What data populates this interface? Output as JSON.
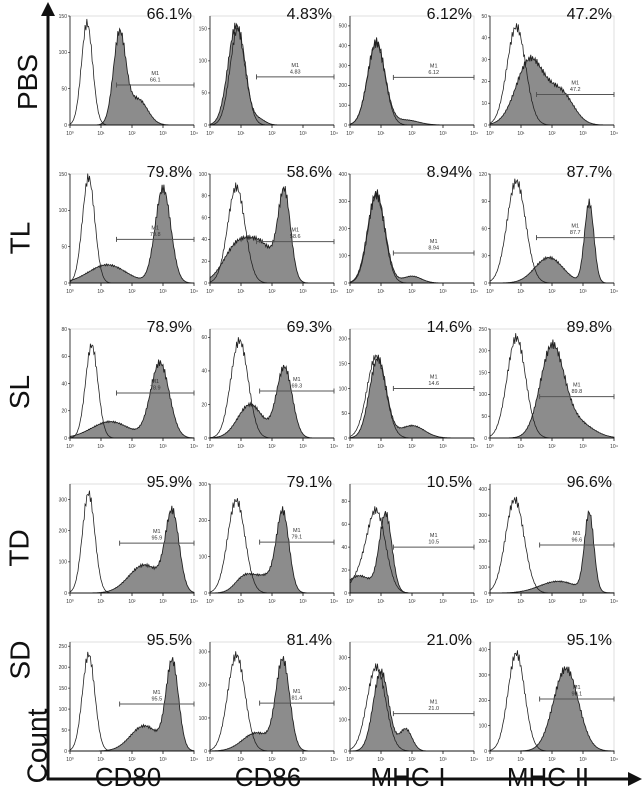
{
  "figure": {
    "y_axis_title": "Count",
    "colors": {
      "filled": "#8c8c8c",
      "outline": "#222222",
      "axis": "#111111",
      "gate": "#555555"
    }
  },
  "chart_data": {
    "type": "histogram-grid",
    "rows": [
      "PBS",
      "TL",
      "SL",
      "TD",
      "SD"
    ],
    "columns": [
      "CD80",
      "CD86",
      "MHC-I",
      "MHC-II"
    ],
    "y_axis_label": "Count",
    "x_scale": "log10",
    "x_range": [
      0,
      4
    ],
    "x_tick_labels": [
      "10⁰",
      "10¹",
      "10²",
      "10³",
      "10⁴"
    ],
    "gate_label": "M1",
    "panels": [
      {
        "row": "PBS",
        "col": "CD80",
        "pct": "66.1%",
        "gate_value": "66.1",
        "ymax": 150,
        "yticks": [
          0,
          50,
          100,
          150
        ],
        "gate_y": 55,
        "gate_from": 1.5,
        "control": [
          [
            0.55,
            0.18,
            140
          ]
        ],
        "sample": [
          [
            1.6,
            0.2,
            125
          ],
          [
            2.2,
            0.3,
            35
          ]
        ]
      },
      {
        "row": "PBS",
        "col": "CD86",
        "pct": "4.83%",
        "gate_value": "4.83",
        "ymax": 170,
        "yticks": [
          0,
          50,
          100,
          150
        ],
        "gate_y": 75,
        "gate_from": 1.5,
        "control": [
          [
            0.9,
            0.25,
            150
          ]
        ],
        "sample": [
          [
            0.85,
            0.27,
            155
          ],
          [
            1.6,
            0.2,
            8
          ]
        ]
      },
      {
        "row": "PBS",
        "col": "MHC-I",
        "pct": "6.12%",
        "gate_value": "6.12",
        "ymax": 550,
        "yticks": [
          0,
          100,
          200,
          300,
          400,
          500
        ],
        "gate_y": 240,
        "gate_from": 1.4,
        "control": [
          [
            0.85,
            0.28,
            410
          ]
        ],
        "sample": [
          [
            0.85,
            0.28,
            420
          ],
          [
            1.8,
            0.4,
            25
          ]
        ]
      },
      {
        "row": "PBS",
        "col": "MHC-II",
        "pct": "47.2%",
        "gate_value": "47.2",
        "ymax": 50,
        "yticks": [
          0,
          10,
          20,
          30,
          40,
          50
        ],
        "gate_y": 14,
        "gate_from": 1.5,
        "control": [
          [
            0.85,
            0.3,
            45
          ]
        ],
        "sample": [
          [
            1.3,
            0.45,
            30
          ],
          [
            2.3,
            0.4,
            14
          ]
        ]
      },
      {
        "row": "TL",
        "col": "CD80",
        "pct": "79.8%",
        "gate_value": "79.8",
        "ymax": 150,
        "yticks": [
          0,
          50,
          100,
          150
        ],
        "gate_y": 60,
        "gate_from": 1.5,
        "control": [
          [
            0.6,
            0.2,
            145
          ]
        ],
        "sample": [
          [
            1.2,
            0.6,
            25
          ],
          [
            3.0,
            0.25,
            130
          ]
        ]
      },
      {
        "row": "TL",
        "col": "CD86",
        "pct": "58.6%",
        "gate_value": "58.6",
        "ymax": 100,
        "yticks": [
          0,
          20,
          40,
          60,
          80,
          100
        ],
        "gate_y": 38,
        "gate_from": 1.5,
        "control": [
          [
            0.85,
            0.28,
            88
          ]
        ],
        "sample": [
          [
            0.9,
            0.45,
            35
          ],
          [
            1.7,
            0.4,
            30
          ],
          [
            2.4,
            0.2,
            80
          ]
        ]
      },
      {
        "row": "TL",
        "col": "MHC-I",
        "pct": "8.94%",
        "gate_value": "8.94",
        "ymax": 400,
        "yticks": [
          0,
          100,
          200,
          300,
          400
        ],
        "gate_y": 110,
        "gate_from": 1.4,
        "control": [
          [
            0.85,
            0.27,
            320
          ]
        ],
        "sample": [
          [
            0.85,
            0.28,
            330
          ],
          [
            2.0,
            0.3,
            25
          ]
        ]
      },
      {
        "row": "TL",
        "col": "MHC-II",
        "pct": "87.7%",
        "gate_value": "87.7",
        "ymax": 120,
        "yticks": [
          0,
          30,
          60,
          90,
          120
        ],
        "gate_y": 50,
        "gate_from": 1.5,
        "control": [
          [
            0.85,
            0.3,
            112
          ]
        ],
        "sample": [
          [
            1.9,
            0.45,
            28
          ],
          [
            3.2,
            0.15,
            88
          ]
        ]
      },
      {
        "row": "SL",
        "col": "CD80",
        "pct": "78.9%",
        "gate_value": "78.9",
        "ymax": 80,
        "yticks": [
          0,
          20,
          40,
          60,
          80
        ],
        "gate_y": 33,
        "gate_from": 1.5,
        "control": [
          [
            0.7,
            0.2,
            68
          ]
        ],
        "sample": [
          [
            1.3,
            0.6,
            12
          ],
          [
            2.9,
            0.3,
            55
          ]
        ]
      },
      {
        "row": "SL",
        "col": "CD86",
        "pct": "69.3%",
        "gate_value": "69.3",
        "ymax": 65,
        "yticks": [
          0,
          20,
          40,
          60
        ],
        "gate_y": 28,
        "gate_from": 1.6,
        "control": [
          [
            0.95,
            0.28,
            58
          ]
        ],
        "sample": [
          [
            1.3,
            0.4,
            20
          ],
          [
            2.4,
            0.25,
            42
          ]
        ]
      },
      {
        "row": "SL",
        "col": "MHC-I",
        "pct": "14.6%",
        "gate_value": "14.6",
        "ymax": 220,
        "yticks": [
          0,
          50,
          100,
          150,
          200
        ],
        "gate_y": 100,
        "gate_from": 1.4,
        "control": [
          [
            0.85,
            0.3,
            165
          ]
        ],
        "sample": [
          [
            0.9,
            0.27,
            160
          ],
          [
            2.0,
            0.4,
            25
          ]
        ]
      },
      {
        "row": "SL",
        "col": "MHC-II",
        "pct": "89.8%",
        "gate_value": "89.8",
        "ymax": 250,
        "yticks": [
          0,
          50,
          100,
          150,
          200,
          250
        ],
        "gate_y": 95,
        "gate_from": 1.6,
        "control": [
          [
            0.85,
            0.3,
            230
          ]
        ],
        "sample": [
          [
            2.0,
            0.38,
            205
          ],
          [
            2.8,
            0.5,
            35
          ]
        ]
      },
      {
        "row": "TD",
        "col": "CD80",
        "pct": "95.9%",
        "gate_value": "95.9",
        "ymax": 350,
        "yticks": [
          0,
          100,
          200,
          300
        ],
        "gate_y": 160,
        "gate_from": 1.6,
        "control": [
          [
            0.6,
            0.2,
            320
          ]
        ],
        "sample": [
          [
            2.4,
            0.5,
            90
          ],
          [
            3.3,
            0.22,
            250
          ]
        ]
      },
      {
        "row": "TD",
        "col": "CD86",
        "pct": "79.1%",
        "gate_value": "79.1",
        "ymax": 300,
        "yticks": [
          0,
          100,
          200,
          300
        ],
        "gate_y": 140,
        "gate_from": 1.6,
        "control": [
          [
            0.85,
            0.28,
            255
          ]
        ],
        "sample": [
          [
            1.1,
            0.3,
            40
          ],
          [
            1.8,
            0.4,
            45
          ],
          [
            2.35,
            0.2,
            210
          ]
        ]
      },
      {
        "row": "TD",
        "col": "MHC-I",
        "pct": "10.5%",
        "gate_value": "10.5",
        "ymax": 95,
        "yticks": [
          0,
          20,
          40,
          60,
          80
        ],
        "gate_y": 40,
        "gate_from": 1.4,
        "control": [
          [
            0.85,
            0.3,
            70
          ],
          [
            0.3,
            0.3,
            12
          ]
        ],
        "sample": [
          [
            1.15,
            0.2,
            68
          ],
          [
            0.3,
            0.4,
            15
          ]
        ]
      },
      {
        "row": "TD",
        "col": "MHC-II",
        "pct": "96.6%",
        "gate_value": "96.6",
        "ymax": 420,
        "yticks": [
          0,
          100,
          200,
          300,
          400
        ],
        "gate_y": 185,
        "gate_from": 1.6,
        "control": [
          [
            0.8,
            0.3,
            360
          ]
        ],
        "sample": [
          [
            2.2,
            0.6,
            45
          ],
          [
            3.2,
            0.15,
            300
          ]
        ]
      },
      {
        "row": "SD",
        "col": "CD80",
        "pct": "95.5%",
        "gate_value": "95.5",
        "ymax": 260,
        "yticks": [
          0,
          50,
          100,
          150,
          200,
          250
        ],
        "gate_y": 112,
        "gate_from": 1.6,
        "control": [
          [
            0.6,
            0.2,
            230
          ]
        ],
        "sample": [
          [
            2.4,
            0.45,
            60
          ],
          [
            3.3,
            0.2,
            210
          ]
        ]
      },
      {
        "row": "SD",
        "col": "CD86",
        "pct": "81.4%",
        "gate_value": "81.4",
        "ymax": 330,
        "yticks": [
          0,
          100,
          200,
          300
        ],
        "gate_y": 145,
        "gate_from": 1.6,
        "control": [
          [
            0.85,
            0.28,
            290
          ]
        ],
        "sample": [
          [
            1.5,
            0.45,
            55
          ],
          [
            2.35,
            0.22,
            270
          ]
        ]
      },
      {
        "row": "SD",
        "col": "MHC-I",
        "pct": "21.0%",
        "gate_value": "21.0",
        "ymax": 350,
        "yticks": [
          0,
          100,
          200,
          300
        ],
        "gate_y": 120,
        "gate_from": 1.4,
        "control": [
          [
            0.85,
            0.3,
            270
          ]
        ],
        "sample": [
          [
            1.0,
            0.25,
            255
          ],
          [
            1.8,
            0.2,
            70
          ]
        ]
      },
      {
        "row": "SD",
        "col": "MHC-II",
        "pct": "95.1%",
        "gate_value": "95.1",
        "ymax": 430,
        "yticks": [
          0,
          100,
          200,
          300,
          400
        ],
        "gate_y": 205,
        "gate_from": 1.6,
        "control": [
          [
            0.85,
            0.27,
            385
          ]
        ],
        "sample": [
          [
            2.45,
            0.4,
            325
          ]
        ]
      }
    ]
  }
}
